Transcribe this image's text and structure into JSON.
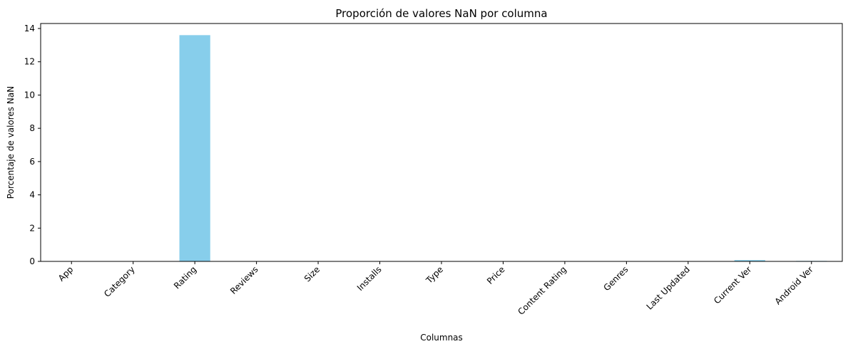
{
  "chart_data": {
    "type": "bar",
    "title": "Proporción de valores NaN por columna",
    "xlabel": "Columnas",
    "ylabel": "Porcentaje de valores NaN",
    "categories": [
      "App",
      "Category",
      "Rating",
      "Reviews",
      "Size",
      "Installs",
      "Type",
      "Price",
      "Content Rating",
      "Genres",
      "Last Updated",
      "Current Ver",
      "Android Ver"
    ],
    "values": [
      0,
      0.01,
      13.6,
      0,
      0,
      0,
      0.01,
      0.01,
      0.01,
      0,
      0,
      0.08,
      0.03
    ],
    "ylim": [
      0,
      14.3
    ],
    "yticks": [
      0,
      2,
      4,
      6,
      8,
      10,
      12,
      14
    ],
    "bar_color": "#87CEEB",
    "grid": false,
    "legend": false
  }
}
